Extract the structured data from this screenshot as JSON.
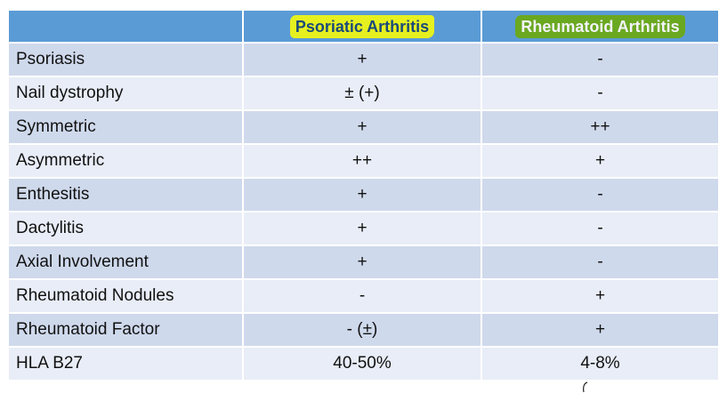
{
  "table": {
    "header": {
      "blank": "",
      "col1": "Psoriatic Arthritis",
      "col2": "Rheumatoid Arthritis"
    },
    "rows": [
      {
        "label": "Psoriasis",
        "psa": "+",
        "ra": "-"
      },
      {
        "label": "Nail dystrophy",
        "psa": "± (+)",
        "ra": "-"
      },
      {
        "label": "Symmetric",
        "psa": "+",
        "ra": "++"
      },
      {
        "label": "Asymmetric",
        "psa": "++",
        "ra": "+"
      },
      {
        "label": "Enthesitis",
        "psa": "+",
        "ra": "-"
      },
      {
        "label": "Dactylitis",
        "psa": "+",
        "ra": "-"
      },
      {
        "label": "Axial Involvement",
        "psa": "+",
        "ra": "-"
      },
      {
        "label": "Rheumatoid Nodules",
        "psa": "-",
        "ra": "+"
      },
      {
        "label": "Rheumatoid Factor",
        "psa": "- (±)",
        "ra": "+"
      },
      {
        "label": "HLA B27",
        "psa": "40-50%",
        "ra": "4-8%"
      }
    ]
  },
  "colors": {
    "header_bg": "#5b9bd5",
    "row_odd": "#cfd9ec",
    "row_even": "#e8edf7",
    "highlight_yellow": "#e6f01f",
    "highlight_green": "#6aa820"
  }
}
